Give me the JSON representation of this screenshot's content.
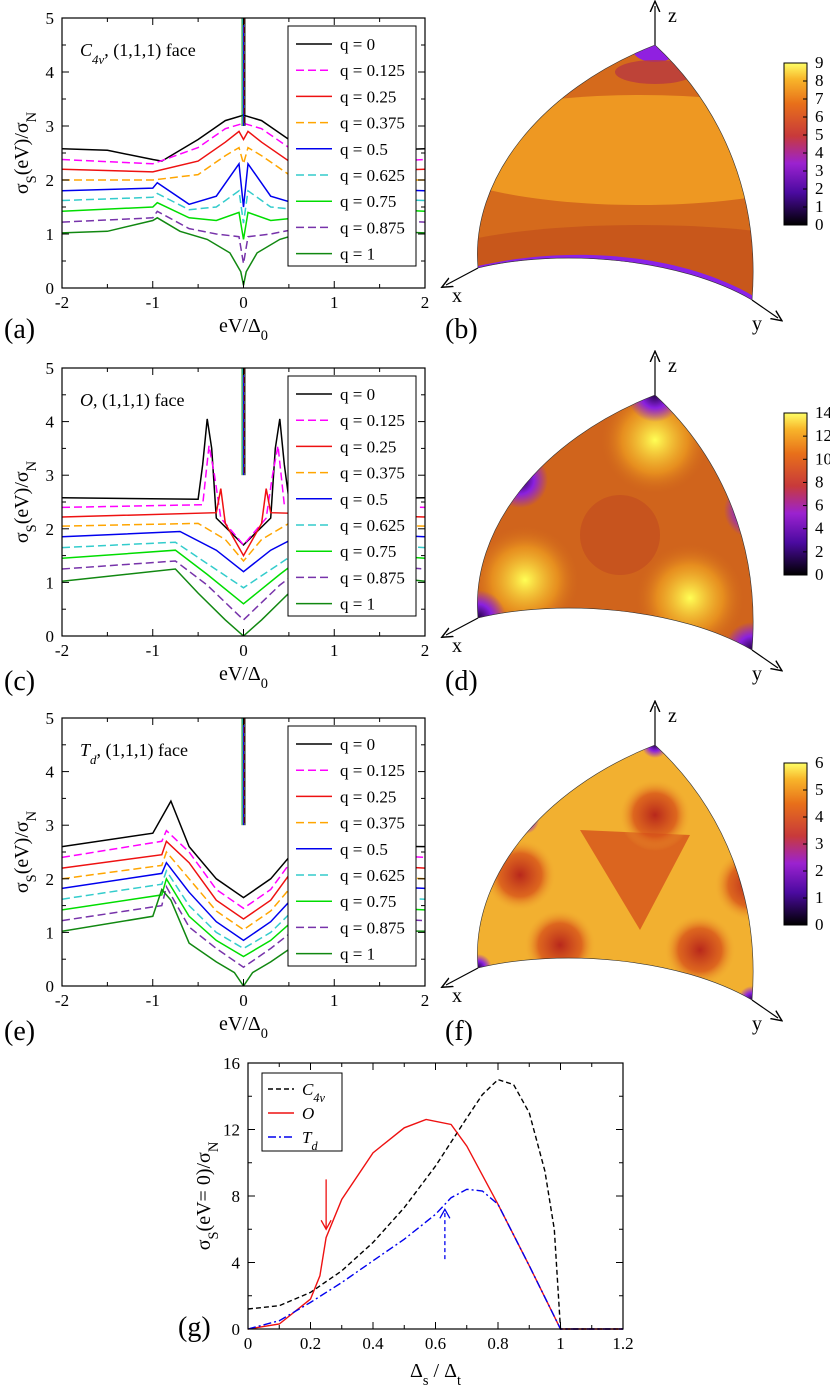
{
  "curve_colors": [
    "#000000",
    "#ff00ff",
    "#ee1111",
    "#ffa500",
    "#0000ee",
    "#33cccc",
    "#00dd00",
    "#7733aa",
    "#118811"
  ],
  "curve_dashes": [
    "",
    "8,4",
    "",
    "8,4",
    "",
    "8,4",
    "",
    "8,4",
    ""
  ],
  "q_labels": [
    "q = 0",
    "q = 0.125",
    "q = 0.25",
    "q = 0.375",
    "q = 0.5",
    "q = 0.625",
    "q = 0.75",
    "q = 0.875",
    "q = 1"
  ],
  "line_axes": {
    "xlabel": "eV/Δ₀",
    "ylabel": "σS(eV)/σN",
    "xlim": [
      -2,
      2
    ],
    "ylim": [
      0,
      5
    ],
    "xticks": [
      "-2",
      "-1",
      "0",
      "1",
      "2"
    ],
    "yticks": [
      "0",
      "1",
      "2",
      "3",
      "4",
      "5"
    ]
  },
  "chart_data": [
    {
      "type": "line",
      "panel": "(a)",
      "title_sym": "C4v",
      "title_rest": ", (1,1,1) face",
      "series": [
        {
          "name": "q = 0",
          "x": [
            -2,
            -1.5,
            -1,
            -0.9,
            -0.5,
            -0.2,
            0,
            0.2,
            0.5,
            0.9,
            1.5,
            2
          ],
          "y": [
            2.58,
            2.55,
            2.38,
            2.35,
            2.75,
            3.1,
            3.2,
            3.1,
            2.75,
            2.4,
            2.55,
            2.58
          ]
        },
        {
          "name": "q = 0.125",
          "x": [
            -2,
            -1,
            -0.5,
            -0.2,
            0,
            0.2,
            0.5,
            1,
            2
          ],
          "y": [
            2.38,
            2.3,
            2.6,
            2.95,
            3.05,
            2.95,
            2.6,
            2.3,
            2.38
          ]
        },
        {
          "name": "q = 0.25",
          "x": [
            -2,
            -1,
            -0.5,
            -0.2,
            -0.05,
            0,
            0.05,
            0.2,
            0.5,
            1,
            2
          ],
          "y": [
            2.2,
            2.15,
            2.35,
            2.7,
            2.9,
            2.75,
            2.9,
            2.7,
            2.35,
            2.15,
            2.2
          ]
        },
        {
          "name": "q = 0.375",
          "x": [
            -2,
            -1,
            -0.5,
            -0.2,
            -0.05,
            0,
            0.05,
            0.2,
            0.5,
            1,
            2
          ],
          "y": [
            2.0,
            2.0,
            2.1,
            2.45,
            2.6,
            2.3,
            2.6,
            2.45,
            2.1,
            2.0,
            2.0
          ]
        },
        {
          "name": "q = 0.5",
          "x": [
            -2,
            -1,
            -0.95,
            -0.6,
            -0.3,
            -0.05,
            0,
            0.05,
            0.3,
            0.6,
            0.95,
            1,
            2
          ],
          "y": [
            1.8,
            1.85,
            1.95,
            1.55,
            1.7,
            2.3,
            1.5,
            2.3,
            1.7,
            1.55,
            1.95,
            1.85,
            1.8
          ]
        },
        {
          "name": "q = 0.625",
          "x": [
            -2,
            -1,
            -0.95,
            -0.6,
            -0.3,
            -0.05,
            0,
            0.05,
            0.3,
            0.6,
            0.95,
            1,
            2
          ],
          "y": [
            1.62,
            1.68,
            1.75,
            1.45,
            1.5,
            1.8,
            1.2,
            1.8,
            1.5,
            1.45,
            1.75,
            1.68,
            1.62
          ]
        },
        {
          "name": "q = 0.75",
          "x": [
            -2,
            -1,
            -0.95,
            -0.6,
            -0.3,
            -0.05,
            0,
            0.05,
            0.3,
            0.6,
            0.95,
            1,
            2
          ],
          "y": [
            1.42,
            1.5,
            1.58,
            1.3,
            1.25,
            1.4,
            0.9,
            1.4,
            1.25,
            1.3,
            1.58,
            1.5,
            1.42
          ]
        },
        {
          "name": "q = 0.875",
          "x": [
            -2,
            -1,
            -0.95,
            -0.6,
            -0.3,
            -0.05,
            0,
            0.05,
            0.3,
            0.6,
            0.95,
            1,
            2
          ],
          "y": [
            1.22,
            1.3,
            1.42,
            1.1,
            1.0,
            0.95,
            0.45,
            0.95,
            1.0,
            1.1,
            1.42,
            1.3,
            1.22
          ]
        },
        {
          "name": "q = 1",
          "x": [
            -2,
            -1.5,
            -1,
            -0.95,
            -0.7,
            -0.4,
            -0.15,
            -0.03,
            0,
            0.03,
            0.15,
            0.4,
            0.7,
            0.95,
            1,
            1.5,
            2
          ],
          "y": [
            1.02,
            1.05,
            1.25,
            1.3,
            1.05,
            0.9,
            0.65,
            0.3,
            0.05,
            0.3,
            0.65,
            0.9,
            1.05,
            1.3,
            1.25,
            1.05,
            1.02
          ]
        }
      ]
    },
    {
      "type": "line",
      "panel": "(c)",
      "title_sym": "O",
      "title_rest": ", (1,1,1) face",
      "series": [
        {
          "name": "q = 0",
          "x": [
            -2,
            -0.5,
            -0.45,
            -0.4,
            -0.35,
            -0.3,
            0,
            0.3,
            0.35,
            0.4,
            0.45,
            0.5,
            2
          ],
          "y": [
            2.58,
            2.55,
            3.2,
            4.05,
            3.5,
            2.2,
            1.7,
            2.2,
            3.5,
            4.05,
            3.2,
            2.55,
            2.58
          ]
        },
        {
          "name": "q = 0.125",
          "x": [
            -2,
            -0.45,
            -0.38,
            -0.32,
            -0.25,
            0,
            0.25,
            0.32,
            0.38,
            0.45,
            2
          ],
          "y": [
            2.4,
            2.45,
            3.55,
            3.0,
            2.2,
            1.7,
            2.2,
            3.0,
            3.55,
            2.45,
            2.4
          ]
        },
        {
          "name": "q = 0.25",
          "x": [
            -2,
            -0.3,
            -0.25,
            -0.2,
            0,
            0.2,
            0.25,
            0.3,
            2
          ],
          "y": [
            2.22,
            2.3,
            2.75,
            2.1,
            1.5,
            2.1,
            2.75,
            2.3,
            2.22
          ]
        },
        {
          "name": "q = 0.375",
          "x": [
            -2,
            -0.5,
            -0.2,
            0,
            0.2,
            0.5,
            2
          ],
          "y": [
            2.05,
            2.1,
            1.8,
            1.4,
            1.8,
            2.1,
            2.05
          ]
        },
        {
          "name": "q = 0.5",
          "x": [
            -2,
            -0.7,
            -0.3,
            0,
            0.3,
            0.7,
            2
          ],
          "y": [
            1.85,
            1.95,
            1.6,
            1.2,
            1.6,
            1.95,
            1.85
          ]
        },
        {
          "name": "q = 0.625",
          "x": [
            -2,
            -0.75,
            -0.4,
            0,
            0.4,
            0.75,
            2
          ],
          "y": [
            1.65,
            1.75,
            1.35,
            0.9,
            1.35,
            1.75,
            1.65
          ]
        },
        {
          "name": "q = 0.75",
          "x": [
            -2,
            -0.75,
            -0.4,
            0,
            0.4,
            0.75,
            2
          ],
          "y": [
            1.45,
            1.6,
            1.15,
            0.6,
            1.15,
            1.6,
            1.45
          ]
        },
        {
          "name": "q = 0.875",
          "x": [
            -2,
            -0.75,
            -0.4,
            0,
            0.4,
            0.75,
            2
          ],
          "y": [
            1.25,
            1.4,
            0.95,
            0.3,
            0.95,
            1.4,
            1.25
          ]
        },
        {
          "name": "q = 1",
          "x": [
            -2,
            -0.75,
            -0.5,
            -0.2,
            0,
            0.2,
            0.5,
            0.75,
            2
          ],
          "y": [
            1.02,
            1.25,
            0.8,
            0.3,
            0.0,
            0.3,
            0.8,
            1.25,
            1.02
          ]
        }
      ]
    },
    {
      "type": "line",
      "panel": "(e)",
      "title_sym": "Td",
      "title_rest": ", (1,1,1) face",
      "series": [
        {
          "name": "q = 0",
          "x": [
            -2,
            -1,
            -0.85,
            -0.8,
            -0.6,
            -0.3,
            0,
            0.3,
            0.6,
            0.8,
            1,
            2
          ],
          "y": [
            2.6,
            2.85,
            3.3,
            3.45,
            2.6,
            2.0,
            1.65,
            2.0,
            2.6,
            2.7,
            2.62,
            2.6
          ]
        },
        {
          "name": "q = 0.125",
          "x": [
            -2,
            -0.9,
            -0.85,
            -0.6,
            -0.3,
            0,
            0.3,
            0.6,
            0.9,
            2
          ],
          "y": [
            2.4,
            2.7,
            2.9,
            2.5,
            1.8,
            1.45,
            1.8,
            2.5,
            2.5,
            2.4
          ]
        },
        {
          "name": "q = 0.25",
          "x": [
            -2,
            -0.9,
            -0.85,
            -0.6,
            -0.3,
            0,
            0.3,
            0.6,
            0.9,
            2
          ],
          "y": [
            2.2,
            2.45,
            2.7,
            2.3,
            1.6,
            1.25,
            1.6,
            2.3,
            2.3,
            2.2
          ]
        },
        {
          "name": "q = 0.375",
          "x": [
            -2,
            -0.9,
            -0.85,
            -0.6,
            -0.3,
            0,
            0.3,
            0.6,
            0.9,
            2
          ],
          "y": [
            2.0,
            2.25,
            2.5,
            2.0,
            1.4,
            1.05,
            1.4,
            2.0,
            2.1,
            2.0
          ]
        },
        {
          "name": "q = 0.5",
          "x": [
            -2,
            -0.9,
            -0.85,
            -0.6,
            -0.3,
            0,
            0.3,
            0.6,
            0.9,
            2
          ],
          "y": [
            1.82,
            2.1,
            2.3,
            1.75,
            1.2,
            0.85,
            1.2,
            1.75,
            1.9,
            1.82
          ]
        },
        {
          "name": "q = 0.625",
          "x": [
            -2,
            -0.9,
            -0.85,
            -0.6,
            -0.3,
            0,
            0.3,
            0.6,
            0.9,
            2
          ],
          "y": [
            1.62,
            1.9,
            2.15,
            1.5,
            1.0,
            0.7,
            1.0,
            1.5,
            1.7,
            1.62
          ]
        },
        {
          "name": "q = 0.75",
          "x": [
            -2,
            -0.9,
            -0.85,
            -0.6,
            -0.3,
            0,
            0.3,
            0.6,
            0.9,
            2
          ],
          "y": [
            1.42,
            1.7,
            2.0,
            1.3,
            0.85,
            0.55,
            0.85,
            1.3,
            1.5,
            1.42
          ]
        },
        {
          "name": "q = 0.875",
          "x": [
            -2,
            -0.9,
            -0.85,
            -0.6,
            -0.3,
            0,
            0.3,
            0.6,
            0.9,
            2
          ],
          "y": [
            1.22,
            1.5,
            1.85,
            1.1,
            0.7,
            0.35,
            0.7,
            1.1,
            1.3,
            1.22
          ]
        },
        {
          "name": "q = 1",
          "x": [
            -2,
            -1,
            -0.9,
            -0.8,
            -0.6,
            -0.3,
            -0.1,
            0,
            0.1,
            0.3,
            0.6,
            0.8,
            1,
            2
          ],
          "y": [
            1.02,
            1.3,
            1.8,
            1.6,
            0.8,
            0.45,
            0.25,
            0.0,
            0.25,
            0.45,
            0.8,
            1.0,
            1.05,
            1.02
          ]
        }
      ]
    },
    {
      "type": "heatmap",
      "panel": "(b)",
      "axes": [
        "x",
        "y",
        "z"
      ],
      "colorbar_ticks": [
        "0",
        "1",
        "2",
        "3",
        "4",
        "5",
        "6",
        "7",
        "8",
        "9"
      ],
      "range": [
        0,
        9
      ]
    },
    {
      "type": "heatmap",
      "panel": "(d)",
      "axes": [
        "x",
        "y",
        "z"
      ],
      "colorbar_ticks": [
        "0",
        "2",
        "4",
        "6",
        "8",
        "10",
        "12",
        "14"
      ],
      "range": [
        0,
        14
      ]
    },
    {
      "type": "heatmap",
      "panel": "(f)",
      "axes": [
        "x",
        "y",
        "z"
      ],
      "colorbar_ticks": [
        "0",
        "1",
        "2",
        "3",
        "4",
        "5",
        "6"
      ],
      "range": [
        0,
        6
      ]
    },
    {
      "type": "line",
      "panel": "(g)",
      "xlabel": "Δs / Δt",
      "ylabel": "σS(eV= 0)/σN",
      "xlim": [
        0,
        1.2
      ],
      "ylim": [
        0,
        16
      ],
      "xticks": [
        "0",
        "0.2",
        "0.4",
        "0.6",
        "0.8",
        "1",
        "1.2"
      ],
      "yticks": [
        "0",
        "4",
        "8",
        "12",
        "16"
      ],
      "series": [
        {
          "name": "C4v",
          "style": "dashed",
          "color": "#000000",
          "x": [
            0,
            0.1,
            0.2,
            0.3,
            0.4,
            0.5,
            0.6,
            0.7,
            0.75,
            0.8,
            0.85,
            0.9,
            0.95,
            0.98,
            1.0,
            1.2
          ],
          "y": [
            1.2,
            1.4,
            2.2,
            3.5,
            5.2,
            7.3,
            9.8,
            12.7,
            14.1,
            15.0,
            14.7,
            13.0,
            9.5,
            6.0,
            0,
            0
          ]
        },
        {
          "name": "O",
          "style": "solid",
          "color": "#ee1111",
          "x": [
            0,
            0.1,
            0.2,
            0.23,
            0.25,
            0.3,
            0.4,
            0.5,
            0.57,
            0.65,
            0.7,
            0.8,
            0.9,
            1.0,
            1.2
          ],
          "y": [
            0,
            0.3,
            1.8,
            3.2,
            5.5,
            7.8,
            10.6,
            12.1,
            12.6,
            12.3,
            11.0,
            7.5,
            3.8,
            0,
            0
          ]
        },
        {
          "name": "Td",
          "style": "dashdot",
          "color": "#0000ee",
          "x": [
            0,
            0.1,
            0.2,
            0.3,
            0.4,
            0.5,
            0.6,
            0.65,
            0.7,
            0.75,
            0.8,
            0.9,
            1.0,
            1.2
          ],
          "y": [
            0,
            0.5,
            1.6,
            2.8,
            4.1,
            5.4,
            6.9,
            7.9,
            8.4,
            8.3,
            7.5,
            3.8,
            0,
            0
          ]
        }
      ],
      "annotations": [
        {
          "kind": "arrow-down",
          "color": "#ee1111",
          "x": 0.25,
          "y_from": 9.0,
          "y_to": 6.0
        },
        {
          "kind": "arrow-up",
          "color": "#0000ee",
          "x": 0.63,
          "y_from": 4.2,
          "y_to": 7.2
        }
      ]
    }
  ]
}
